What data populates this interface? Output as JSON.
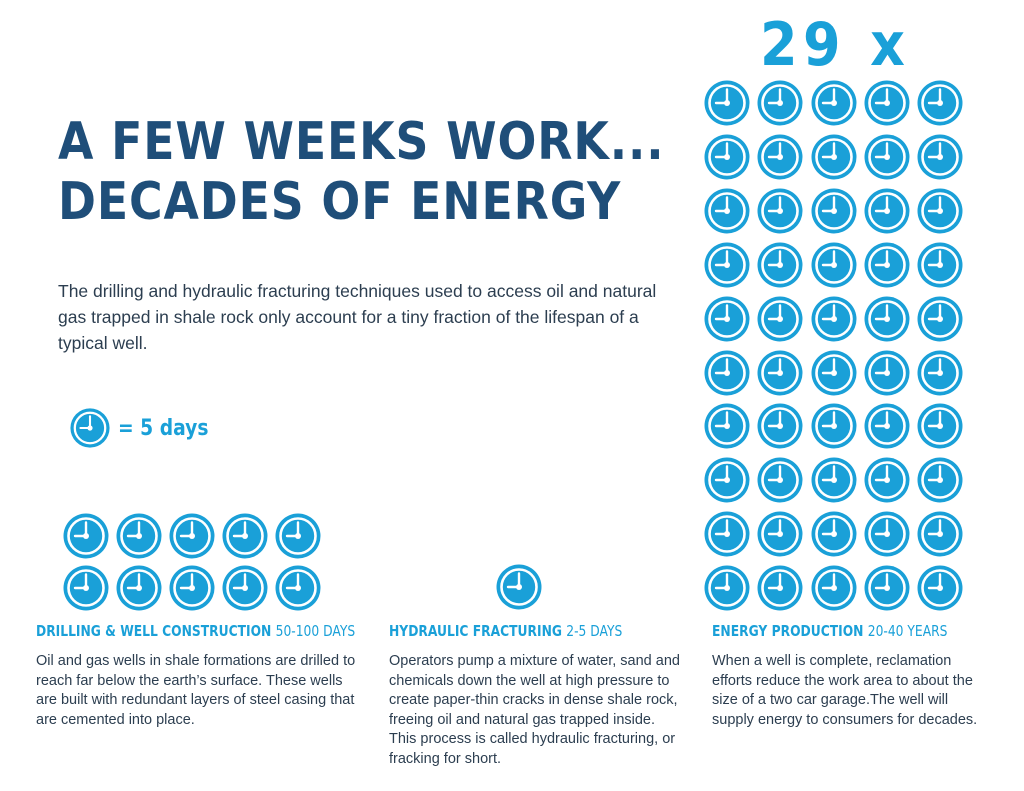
{
  "header": {
    "title_line1": "A FEW WEEKS WORK...",
    "title_line2": "DECADES OF ENERGY"
  },
  "intro": {
    "text": "The drilling and hydraulic fracturing techniques used to access oil and natural gas trapped in shale rock only account for a tiny fraction of the lifespan of a typical well."
  },
  "legend": {
    "icon": "clock-icon",
    "label": "= 5 days"
  },
  "multiplier": {
    "label": "29 x"
  },
  "sections": [
    {
      "id": "drilling",
      "title": "DRILLING & WELL CONSTRUCTION",
      "range": "50-100 DAYS",
      "body": "Oil and gas wells in shale formations are drilled to reach far below the earth’s surface. These wells are built with redundant layers of steel casing that are cemented into place.",
      "clock_count": 10
    },
    {
      "id": "fracturing",
      "title": "HYDRAULIC FRACTURING",
      "range": "2-5 DAYS",
      "body": "Operators pump a mixture of water, sand and chemicals down the well at high pressure to create paper-thin cracks in dense shale rock, freeing oil and natural gas trapped inside. This process is called hydraulic fracturing, or fracking for short.",
      "clock_count": 1
    },
    {
      "id": "production",
      "title": "ENERGY PRODUCTION",
      "range": "20-40 YEARS",
      "body": "When a well is complete, reclamation efforts reduce the work area to about the size of a two car garage.The well will supply energy to consumers for decades.",
      "clock_count": 50
    }
  ],
  "colors": {
    "title_navy": "#1f4e79",
    "accent_blue": "#1aa0d8",
    "body_text": "#2c3e50",
    "background": "#ffffff"
  }
}
